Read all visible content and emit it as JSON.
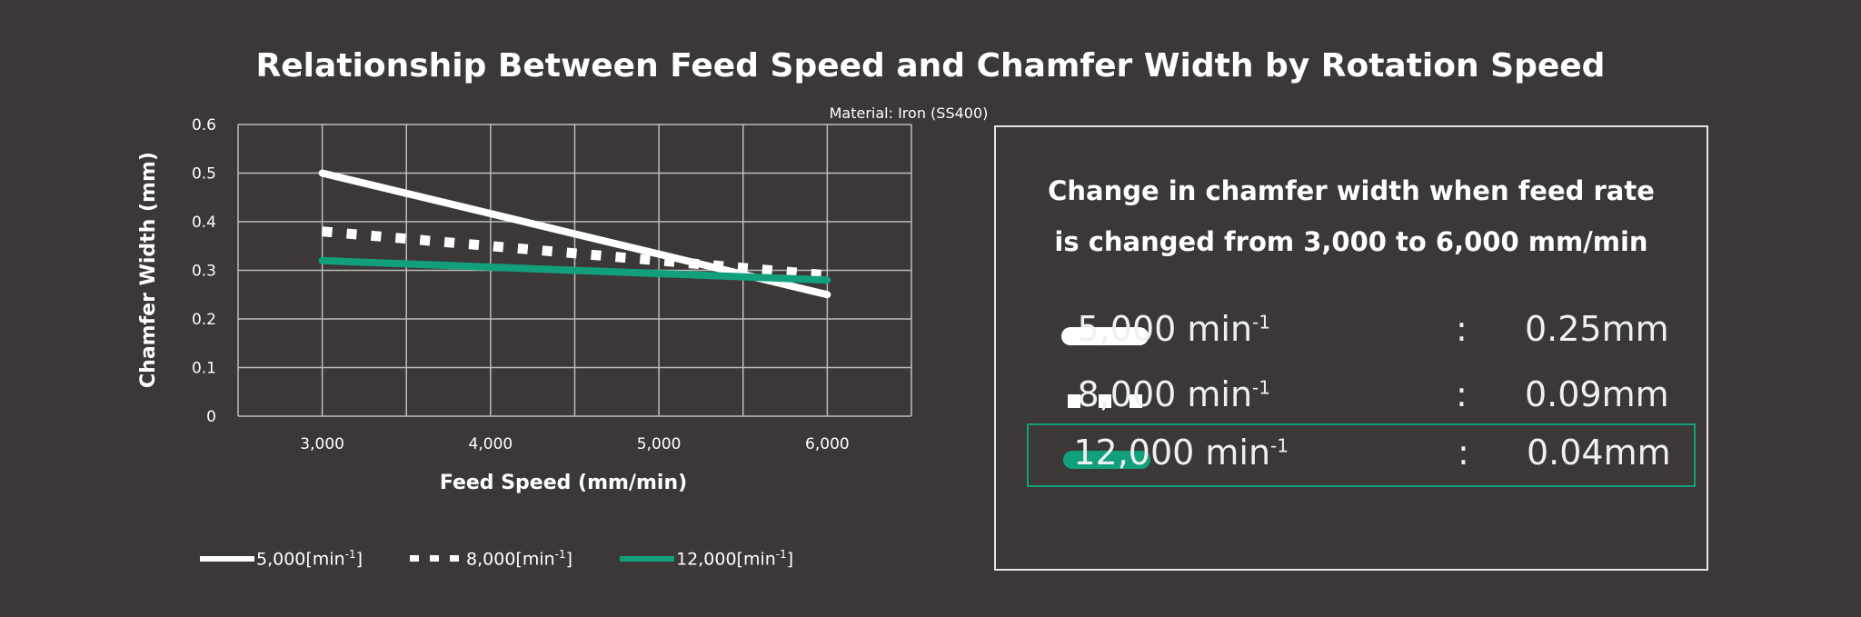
{
  "colors": {
    "background": "#3b3837",
    "grid": "#bdbdbd",
    "series_white": "#ffffff",
    "series_green": "#12a07c",
    "panel_border": "#e6e6e6"
  },
  "chart_data": {
    "type": "line",
    "title": "Relationship Between Feed Speed and Chamfer Width by Rotation Speed",
    "subtitle": "Material: Iron (SS400)",
    "xlabel": "Feed Speed (mm/min)",
    "ylabel": "Chamfer Width (mm)",
    "x": [
      3000,
      6000
    ],
    "x_ticks": [
      "3,000",
      "4,000",
      "5,000",
      "6,000"
    ],
    "y_ticks": [
      "0",
      "0.1",
      "0.2",
      "0.3",
      "0.4",
      "0.5",
      "0.6"
    ],
    "xlim": [
      2500,
      6500
    ],
    "ylim": [
      0,
      0.6
    ],
    "grid": true,
    "legend_position": "bottom",
    "series": [
      {
        "name": "5,000[min⁻¹]",
        "values": [
          0.5,
          0.25
        ],
        "style": "solid",
        "color": "#ffffff"
      },
      {
        "name": "8,000[min⁻¹]",
        "values": [
          0.38,
          0.29
        ],
        "style": "dotted",
        "color": "#ffffff"
      },
      {
        "name": "12,000[min⁻¹]",
        "values": [
          0.32,
          0.28
        ],
        "style": "solid",
        "color": "#12a07c"
      }
    ]
  },
  "legend": {
    "items": [
      {
        "prefix": "5,000[min",
        "suffix": "]"
      },
      {
        "prefix": "8,000[min",
        "suffix": "]"
      },
      {
        "prefix": "12,000[min",
        "suffix": "]"
      }
    ],
    "exponent": "-1"
  },
  "panel": {
    "heading_line1": "Change in chamfer width when feed rate",
    "heading_line2": "is changed from 3,000 to 6,000 mm/min",
    "rows": [
      {
        "rate": "5,000 min",
        "exponent": "-1",
        "colon": ":",
        "value": "0.25mm"
      },
      {
        "rate": "8,000 min",
        "exponent": "-1",
        "colon": ":",
        "value": "0.09mm"
      },
      {
        "rate": "12,000 min",
        "exponent": "-1",
        "colon": ":",
        "value": "0.04mm"
      }
    ]
  }
}
